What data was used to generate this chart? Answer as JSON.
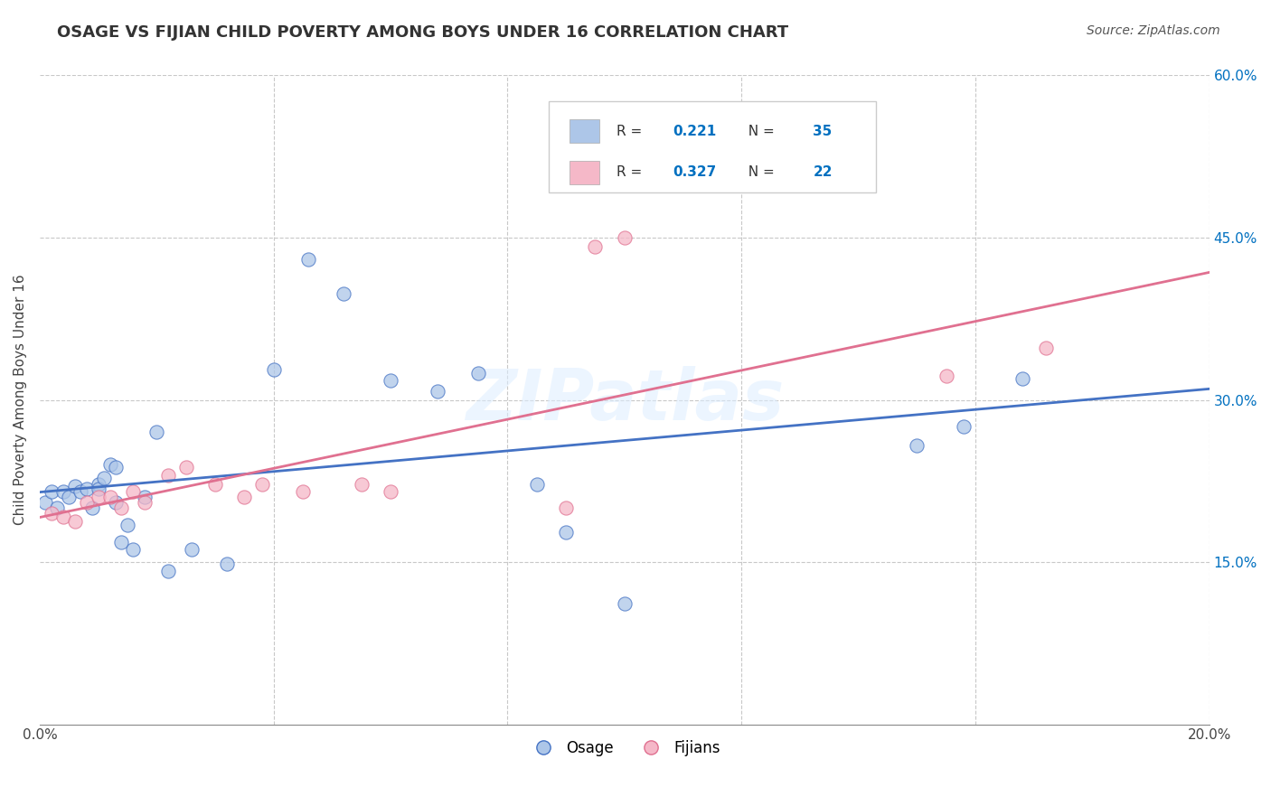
{
  "title": "OSAGE VS FIJIAN CHILD POVERTY AMONG BOYS UNDER 16 CORRELATION CHART",
  "source": "Source: ZipAtlas.com",
  "ylabel": "Child Poverty Among Boys Under 16",
  "xlim": [
    0.0,
    0.2
  ],
  "ylim": [
    0.0,
    0.6
  ],
  "osage_R": 0.221,
  "osage_N": 35,
  "fijian_R": 0.327,
  "fijian_N": 22,
  "osage_color": "#adc6e8",
  "fijian_color": "#f5b8c8",
  "osage_line_color": "#4472c4",
  "fijian_line_color": "#e07090",
  "legend_color_blue": "#0070c0",
  "background_color": "#ffffff",
  "watermark": "ZIPatlas",
  "osage_x": [
    0.001,
    0.002,
    0.003,
    0.004,
    0.005,
    0.006,
    0.007,
    0.008,
    0.009,
    0.01,
    0.01,
    0.011,
    0.012,
    0.013,
    0.013,
    0.014,
    0.015,
    0.016,
    0.018,
    0.02,
    0.022,
    0.026,
    0.032,
    0.04,
    0.046,
    0.052,
    0.06,
    0.068,
    0.075,
    0.085,
    0.09,
    0.1,
    0.15,
    0.158,
    0.168
  ],
  "osage_y": [
    0.205,
    0.215,
    0.2,
    0.215,
    0.21,
    0.22,
    0.215,
    0.218,
    0.2,
    0.222,
    0.218,
    0.228,
    0.24,
    0.238,
    0.205,
    0.168,
    0.184,
    0.162,
    0.21,
    0.27,
    0.142,
    0.162,
    0.148,
    0.328,
    0.43,
    0.398,
    0.318,
    0.308,
    0.325,
    0.222,
    0.178,
    0.112,
    0.258,
    0.275,
    0.32
  ],
  "fijian_x": [
    0.002,
    0.004,
    0.006,
    0.008,
    0.01,
    0.012,
    0.014,
    0.016,
    0.018,
    0.022,
    0.025,
    0.03,
    0.035,
    0.038,
    0.045,
    0.055,
    0.06,
    0.09,
    0.095,
    0.1,
    0.155,
    0.172
  ],
  "fijian_y": [
    0.195,
    0.192,
    0.188,
    0.205,
    0.21,
    0.21,
    0.2,
    0.215,
    0.205,
    0.23,
    0.238,
    0.222,
    0.21,
    0.222,
    0.215,
    0.222,
    0.215,
    0.2,
    0.442,
    0.45,
    0.322,
    0.348
  ]
}
